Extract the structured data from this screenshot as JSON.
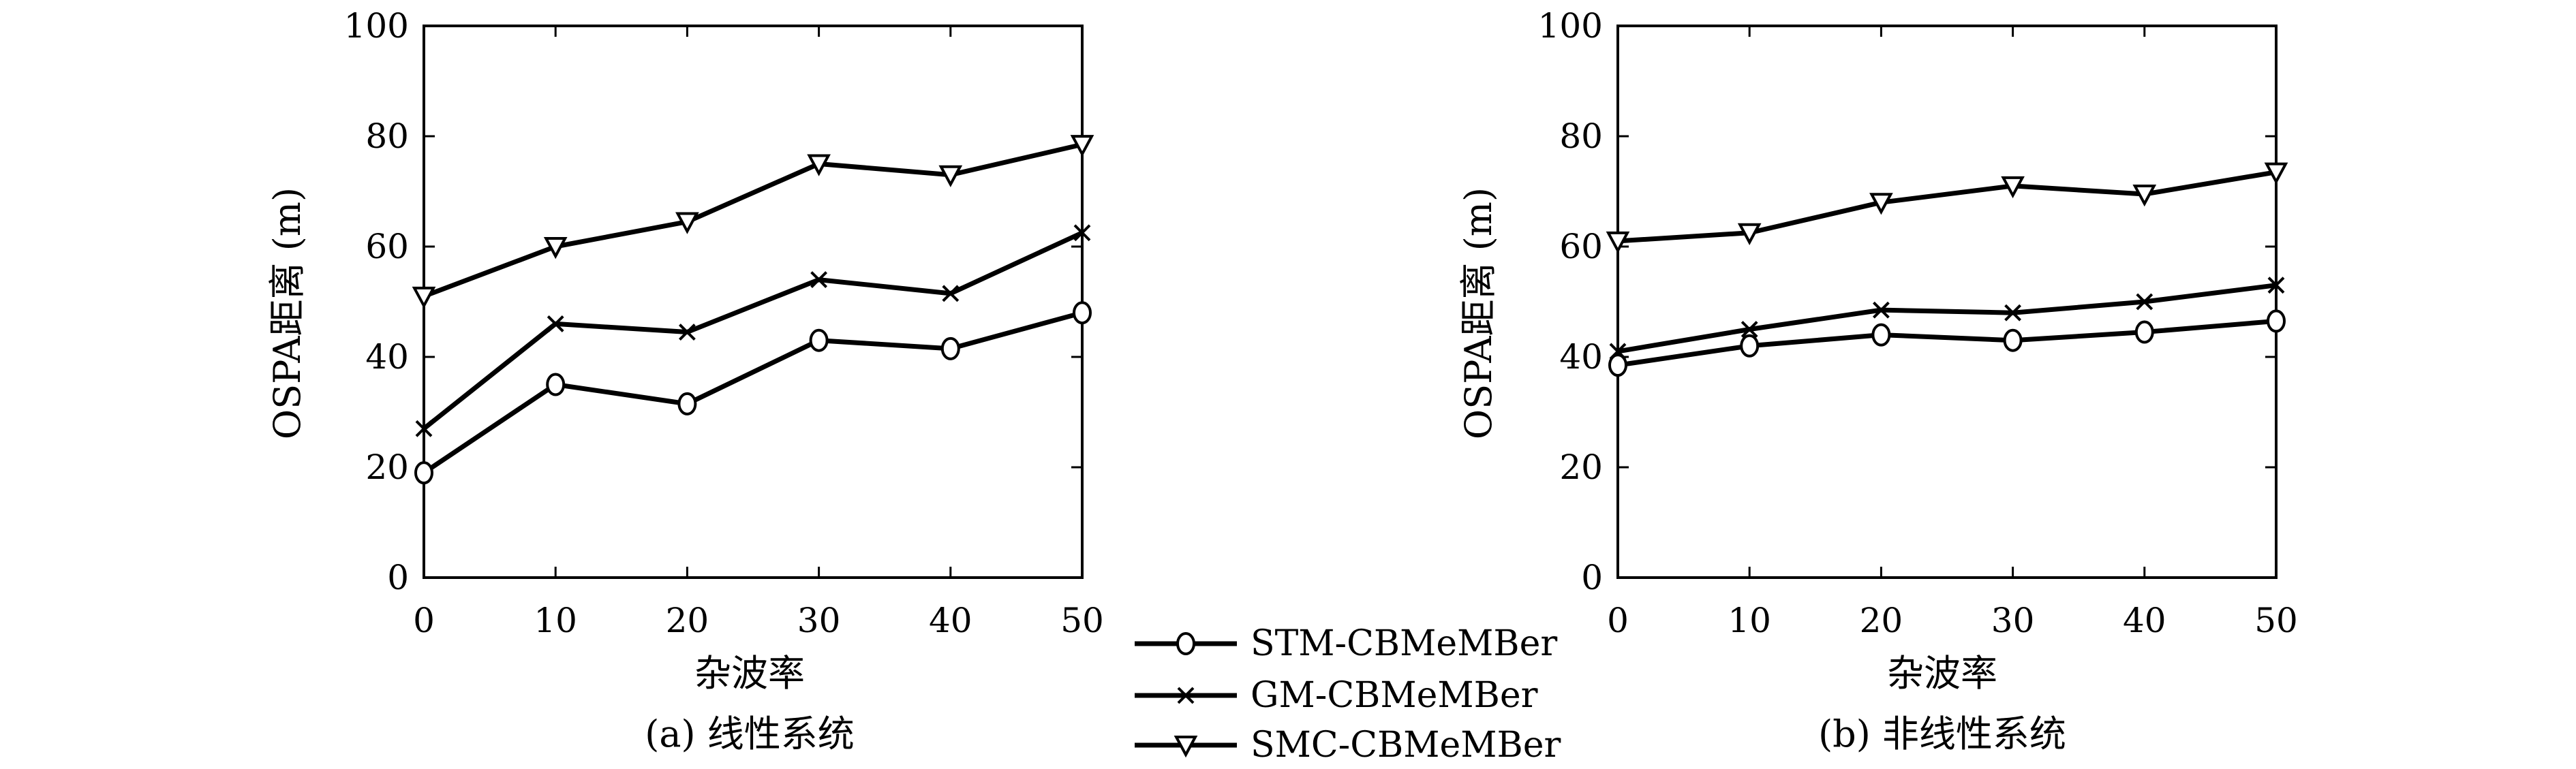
{
  "legend": [
    {
      "name": "STM-CBMeMBer",
      "marker": "circle"
    },
    {
      "name": "GM-CBMeMBer",
      "marker": "x"
    },
    {
      "name": "SMC-CBMeMBer",
      "marker": "triangle-down"
    }
  ],
  "chart_data": [
    {
      "type": "line",
      "caption": "(a) 线性系统",
      "xlabel": "杂波率",
      "ylabel": "OSPA距离 (m)",
      "x": [
        0,
        10,
        20,
        30,
        40,
        50
      ],
      "xlim": [
        0,
        50
      ],
      "ylim": [
        0,
        100
      ],
      "xticks": [
        "0",
        "10",
        "20",
        "30",
        "40",
        "50"
      ],
      "yticks": [
        "0",
        "20",
        "40",
        "60",
        "80",
        "100"
      ],
      "grid": false,
      "series": [
        {
          "name": "STM-CBMeMBer",
          "values": [
            19,
            35,
            31.5,
            43,
            41.5,
            48
          ]
        },
        {
          "name": "GM-CBMeMBer",
          "values": [
            27,
            46,
            44.5,
            54,
            51.5,
            62.5
          ]
        },
        {
          "name": "SMC-CBMeMBer",
          "values": [
            51,
            60,
            64.5,
            75,
            73,
            78.5
          ]
        }
      ]
    },
    {
      "type": "line",
      "caption": "(b) 非线性系统",
      "xlabel": "杂波率",
      "ylabel": "OSPA距离 (m)",
      "x": [
        0,
        10,
        20,
        30,
        40,
        50
      ],
      "xlim": [
        0,
        50
      ],
      "ylim": [
        0,
        100
      ],
      "xticks": [
        "0",
        "10",
        "20",
        "30",
        "40",
        "50"
      ],
      "yticks": [
        "0",
        "20",
        "40",
        "60",
        "80",
        "100"
      ],
      "grid": false,
      "series": [
        {
          "name": "STM-CBMeMBer",
          "values": [
            38.5,
            42,
            44,
            43,
            44.5,
            46.5
          ]
        },
        {
          "name": "GM-CBMeMBer",
          "values": [
            41,
            45,
            48.5,
            48,
            50,
            53
          ]
        },
        {
          "name": "SMC-CBMeMBer",
          "values": [
            61,
            62.5,
            68,
            71,
            69.5,
            73.5
          ]
        }
      ]
    }
  ]
}
